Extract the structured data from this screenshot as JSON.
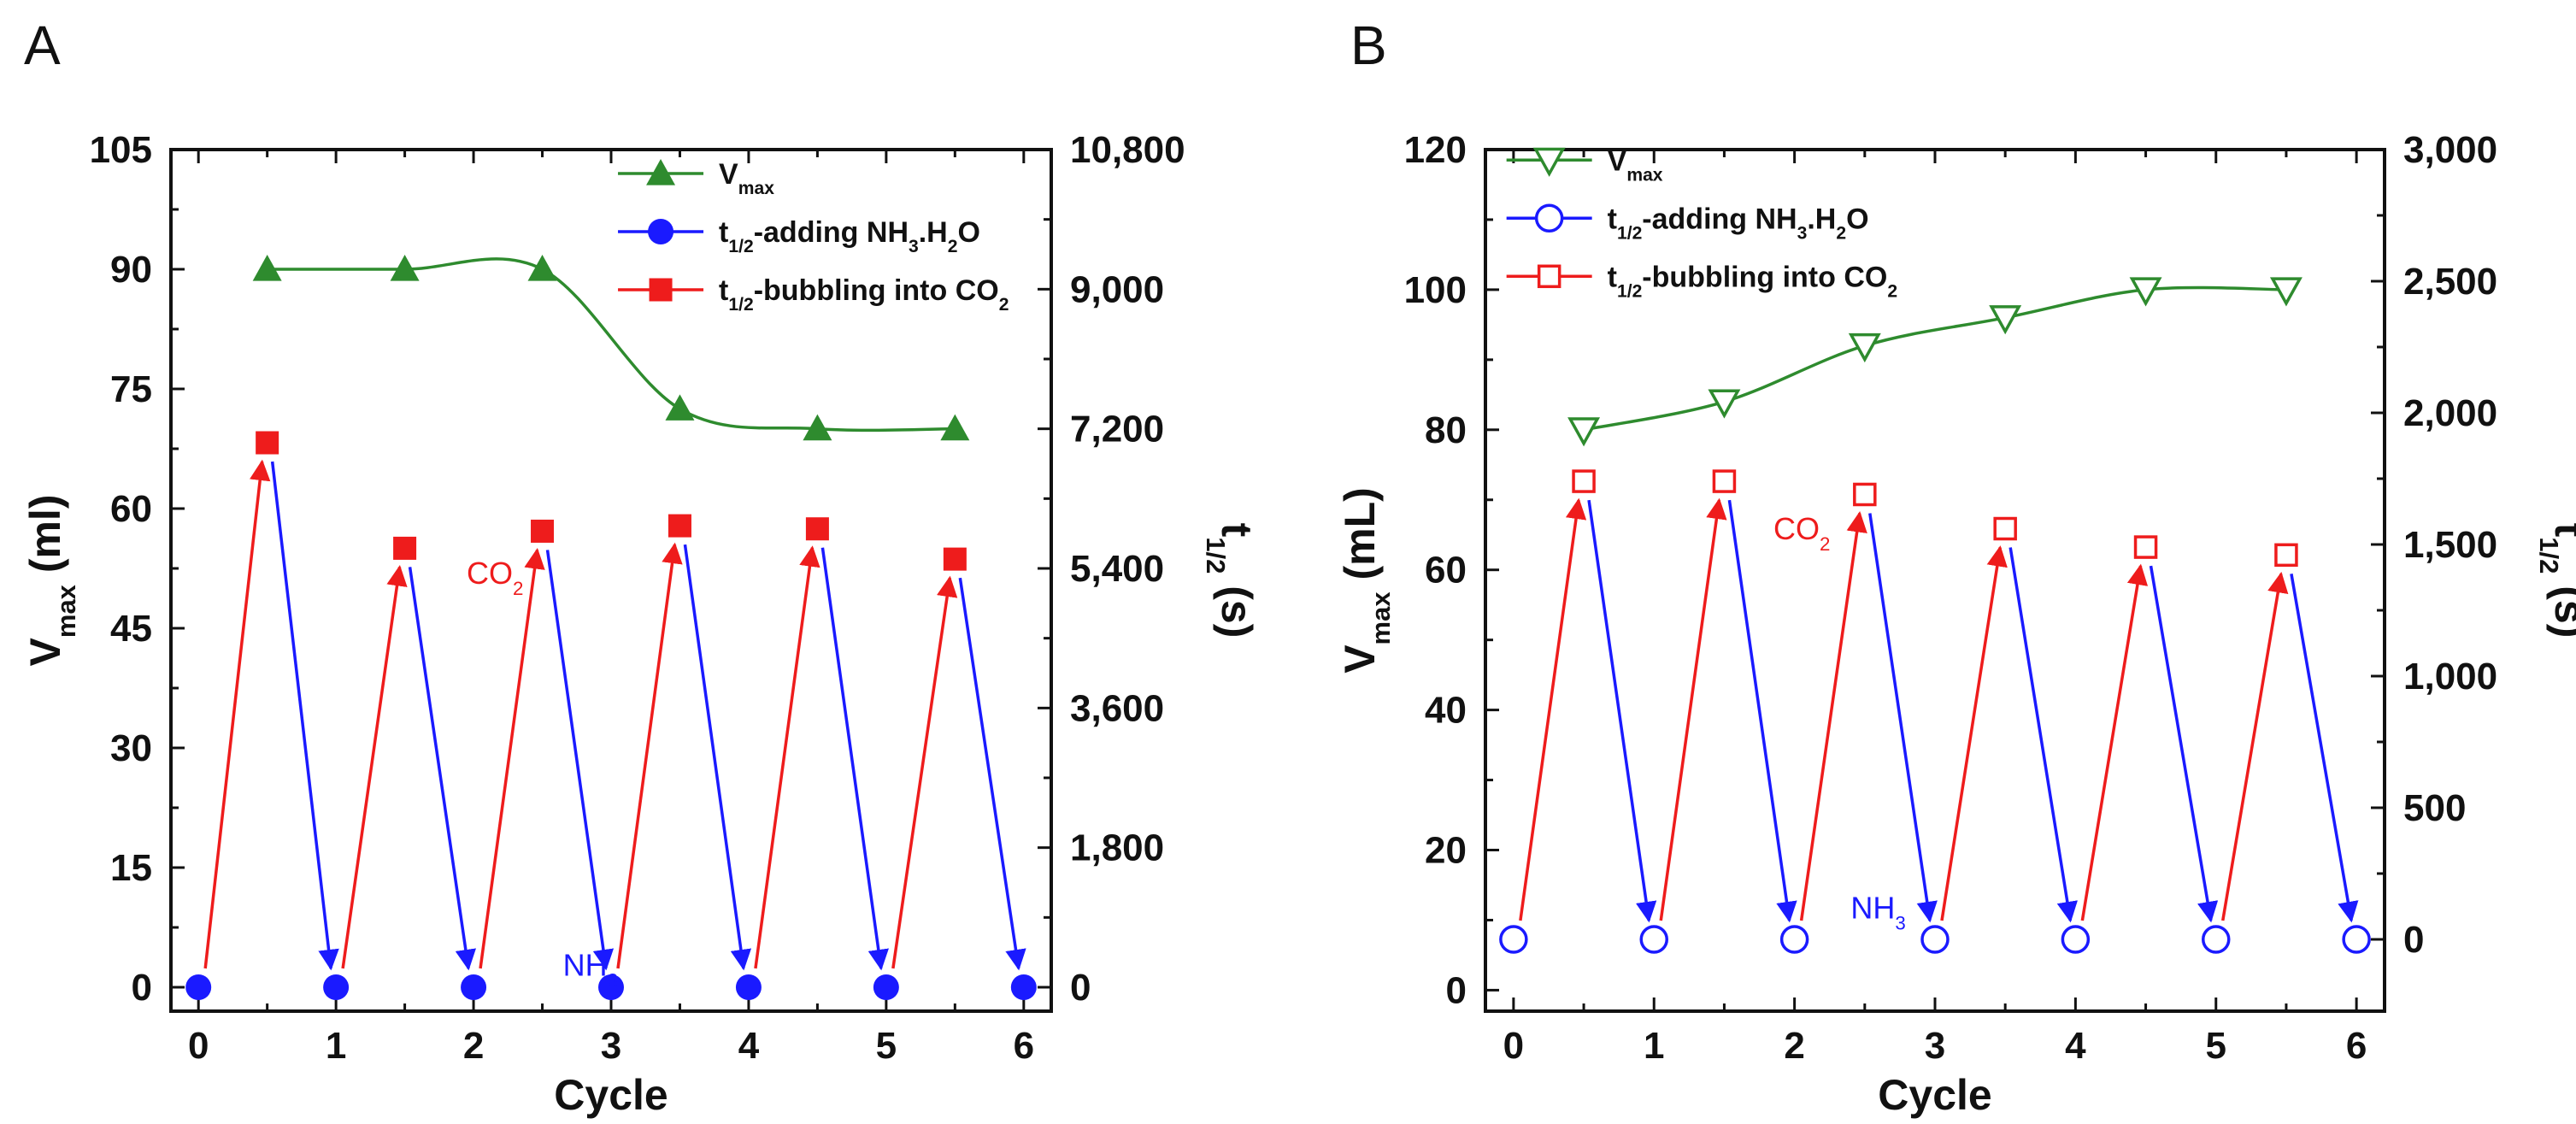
{
  "chart_data": [
    {
      "panel": "A",
      "type": "line",
      "xlabel": "Cycle",
      "ylabel": "V",
      "ylabel_sub": "max",
      "ylabel_unit": " (ml)",
      "y2label": "t",
      "y2label_sub": "1/2",
      "y2label_unit": " (s)",
      "xlim": [
        -0.2,
        6.2
      ],
      "ylim": [
        -3,
        105
      ],
      "y2lim": [
        -308.57,
        10800
      ],
      "xticks": [
        "0",
        "1",
        "2",
        "3",
        "4",
        "5",
        "6"
      ],
      "yticks": [
        "0",
        "15",
        "30",
        "45",
        "60",
        "75",
        "90",
        "105"
      ],
      "y2ticks": [
        "0",
        "1,800",
        "3,600",
        "5,400",
        "7,200",
        "9,000",
        "10,800"
      ],
      "legend": [
        {
          "label": "V",
          "sub": "max",
          "sub2": "",
          "post": ""
        },
        {
          "label": "t",
          "sub": "1/2",
          "mid": "-adding NH",
          "sub2": "3",
          "post": ".H",
          "sub3": "2",
          "post2": "O"
        },
        {
          "label": "t",
          "sub": "1/2",
          "mid": "-bubbling into CO",
          "sub2": "2",
          "post": ""
        }
      ],
      "series": [
        {
          "name": "Vmax",
          "x": [
            0.5,
            1.5,
            2.5,
            3.5,
            4.5,
            5.5
          ],
          "y": [
            90,
            90,
            90,
            72.5,
            70,
            70
          ],
          "color": "#2e8b2e",
          "marker": "triangle-up",
          "filled": true
        },
        {
          "name": "t1/2-adding NH3.H2O",
          "x": [
            0,
            1,
            2,
            3,
            4,
            5,
            6
          ],
          "y2": [
            0,
            0,
            0,
            0,
            0,
            0,
            0
          ],
          "color": "#1a1aff",
          "marker": "circle",
          "filled": true
        },
        {
          "name": "t1/2-bubbling into CO2",
          "x": [
            0.5,
            1.5,
            2.5,
            3.5,
            4.5,
            5.5
          ],
          "y2": [
            7020,
            5660,
            5880,
            5950,
            5910,
            5520
          ],
          "color": "#ee1c1c",
          "marker": "square",
          "filled": true
        }
      ],
      "annotations": [
        {
          "text": "CO",
          "sub": "2",
          "x": 1.95,
          "y2": 5200,
          "color": "#ee1c1c"
        },
        {
          "text": "NH",
          "sub": "3",
          "x": 2.65,
          "y2": 150,
          "color": "#1a1aff"
        }
      ]
    },
    {
      "panel": "B",
      "type": "line",
      "xlabel": "Cycle",
      "ylabel": "V",
      "ylabel_sub": "max",
      "ylabel_unit": " (mL)",
      "y2label": "t",
      "y2label_sub": "1/2",
      "y2label_unit": " (s)",
      "xlim": [
        -0.2,
        6.2
      ],
      "ylim": [
        -3,
        120
      ],
      "y2lim": [
        -272.73,
        3000
      ],
      "xticks": [
        "0",
        "1",
        "2",
        "3",
        "4",
        "5",
        "6"
      ],
      "yticks": [
        "0",
        "20",
        "40",
        "60",
        "80",
        "100",
        "120"
      ],
      "y2ticks": [
        "0",
        "500",
        "1,000",
        "1,500",
        "2,000",
        "2,500",
        "3,000"
      ],
      "legend": [
        {
          "label": "V",
          "sub": "max",
          "sub2": "",
          "post": ""
        },
        {
          "label": "t",
          "sub": "1/2",
          "mid": "-adding NH",
          "sub2": "3",
          "post": ".H",
          "sub3": "2",
          "post2": "O"
        },
        {
          "label": "t",
          "sub": "1/2",
          "mid": "-bubbling into CO",
          "sub2": "2",
          "post": ""
        }
      ],
      "series": [
        {
          "name": "Vmax",
          "x": [
            0.5,
            1.5,
            2.5,
            3.5,
            4.5,
            5.5
          ],
          "y": [
            80,
            84,
            92,
            96,
            100,
            100
          ],
          "color": "#2e8b2e",
          "marker": "triangle-down",
          "filled": false
        },
        {
          "name": "t1/2-adding NH3.H2O",
          "x": [
            0,
            1,
            2,
            3,
            4,
            5,
            6
          ],
          "y2": [
            0,
            0,
            0,
            0,
            0,
            0,
            0
          ],
          "color": "#1a1aff",
          "marker": "circle",
          "filled": false
        },
        {
          "name": "t1/2-bubbling into CO2",
          "x": [
            0.5,
            1.5,
            2.5,
            3.5,
            4.5,
            5.5
          ],
          "y2": [
            1740,
            1740,
            1690,
            1560,
            1490,
            1460
          ],
          "color": "#ee1c1c",
          "marker": "square",
          "filled": false
        }
      ],
      "annotations": [
        {
          "text": "CO",
          "sub": "2",
          "x": 1.85,
          "y2": 1520,
          "color": "#ee1c1c"
        },
        {
          "text": "NH",
          "sub": "3",
          "x": 2.4,
          "y2": 80,
          "color": "#1a1aff"
        }
      ]
    }
  ]
}
